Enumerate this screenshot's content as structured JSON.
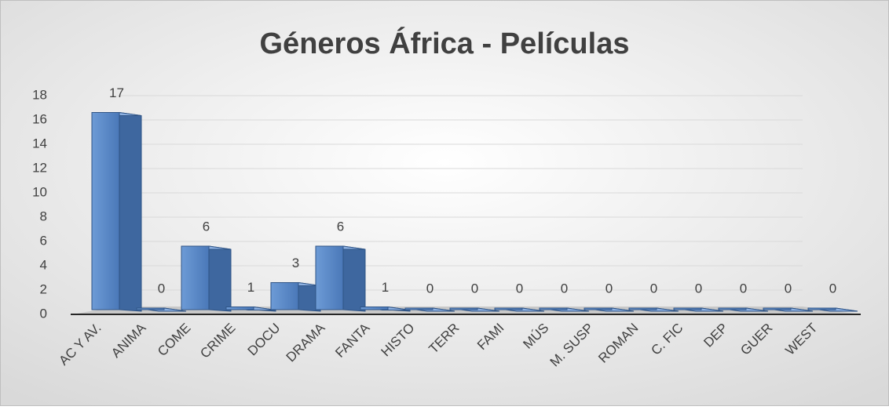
{
  "chart_data": {
    "type": "bar3d",
    "title": "Géneros África - Películas",
    "categories": [
      "AC Y AV.",
      "ANIMA",
      "COME",
      "CRIME",
      "DOCU",
      "DRAMA",
      "FANTA",
      "HISTO",
      "TERR",
      "FAMI",
      "MÚS",
      "M. SUSP",
      "ROMAN",
      "C. FIC",
      "DEP",
      "GUER",
      "WEST"
    ],
    "values": [
      17,
      0,
      6,
      1,
      3,
      6,
      1,
      0,
      0,
      0,
      0,
      0,
      0,
      0,
      0,
      0,
      0
    ],
    "color": "#4f81bd",
    "ylim": [
      0,
      18
    ],
    "yticks": [
      0,
      2,
      4,
      6,
      8,
      10,
      12,
      14,
      16,
      18
    ],
    "grid": true
  }
}
